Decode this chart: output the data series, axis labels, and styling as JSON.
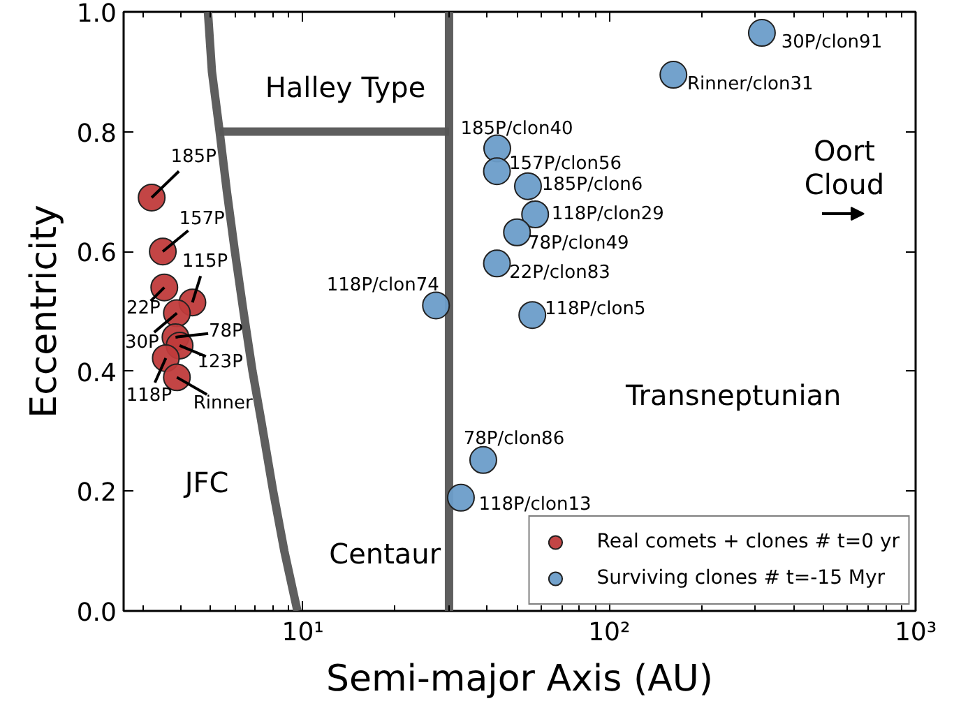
{
  "chart_data": {
    "type": "scatter",
    "xlabel": "Semi-major Axis (AU)",
    "ylabel": "Eccentricity",
    "log": "x",
    "grid": false,
    "legend": "bottom right",
    "xlim": [
      2.6,
      1000
    ],
    "ylim": [
      0,
      1
    ],
    "xticks": [
      {
        "value": 3,
        "label": null
      },
      {
        "value": 4,
        "label": null
      },
      {
        "value": 5,
        "label": null
      },
      {
        "value": 6,
        "label": null
      },
      {
        "value": 7,
        "label": null
      },
      {
        "value": 8,
        "label": null
      },
      {
        "value": 9,
        "label": null
      },
      {
        "value": 10,
        "label": "10¹"
      },
      {
        "value": 20,
        "label": null
      },
      {
        "value": 30,
        "label": null
      },
      {
        "value": 40,
        "label": null
      },
      {
        "value": 50,
        "label": null
      },
      {
        "value": 60,
        "label": null
      },
      {
        "value": 70,
        "label": null
      },
      {
        "value": 80,
        "label": null
      },
      {
        "value": 90,
        "label": null
      },
      {
        "value": 100,
        "label": "10²"
      },
      {
        "value": 200,
        "label": null
      },
      {
        "value": 300,
        "label": null
      },
      {
        "value": 400,
        "label": null
      },
      {
        "value": 500,
        "label": null
      },
      {
        "value": 600,
        "label": null
      },
      {
        "value": 700,
        "label": null
      },
      {
        "value": 800,
        "label": null
      },
      {
        "value": 900,
        "label": null
      },
      {
        "value": 1000,
        "label": "10³"
      }
    ],
    "yticks": [
      {
        "value": 0,
        "label": "0.0"
      },
      {
        "value": 0.2,
        "label": "0.2"
      },
      {
        "value": 0.4,
        "label": "0.4"
      },
      {
        "value": 0.6,
        "label": "0.6"
      },
      {
        "value": 0.8,
        "label": "0.8"
      },
      {
        "value": 1,
        "label": "1.0"
      }
    ],
    "series": [
      {
        "type": "line",
        "color": "#555555",
        "x": [
          4.9,
          5.05,
          5.35,
          5.65,
          6.0,
          6.4,
          6.85,
          7.3,
          8.0,
          8.7,
          9.6
        ],
        "values": [
          1.0,
          0.9,
          0.8,
          0.7,
          0.6,
          0.5,
          0.4,
          0.32,
          0.2,
          0.1,
          0.0
        ]
      },
      {
        "type": "line",
        "color": "#555555",
        "x": [
          5.35,
          30
        ],
        "values": [
          0.8,
          0.8
        ]
      },
      {
        "type": "line",
        "color": "#555555",
        "x": [
          30,
          30
        ],
        "values": [
          0,
          1
        ]
      },
      {
        "name": "Real comets + clones # t=0 yr",
        "color": "#c03b3b",
        "marker": "circle",
        "x": [
          3.21,
          3.49,
          3.53,
          4.36,
          3.88,
          3.84,
          3.96,
          3.57,
          3.88
        ],
        "values": [
          0.69,
          0.6,
          0.54,
          0.515,
          0.497,
          0.457,
          0.443,
          0.422,
          0.39
        ]
      },
      {
        "name": "Surviving clones # t=-15 Myr",
        "color": "#6c9dc9",
        "marker": "circle",
        "x": [
          315,
          162,
          43.1,
          43,
          54.3,
          57.3,
          50,
          43,
          27.2,
          56.1,
          38.8,
          32.8
        ],
        "values": [
          0.965,
          0.895,
          0.772,
          0.734,
          0.709,
          0.662,
          0.632,
          0.58,
          0.51,
          0.494,
          0.252,
          0.189
        ]
      }
    ],
    "annotations": [
      "Halley Type",
      "JFC",
      "Centaur",
      "Transneptunian",
      "Oort Cloud",
      {
        "text": "185P",
        "x": 3.21,
        "y": 0.69
      },
      {
        "text": "157P",
        "x": 3.49,
        "y": 0.6
      },
      {
        "text": "22P",
        "x": 3.53,
        "y": 0.54
      },
      {
        "text": "115P",
        "x": 4.36,
        "y": 0.515
      },
      {
        "text": "30P",
        "x": 3.88,
        "y": 0.497
      },
      {
        "text": "78P",
        "x": 3.84,
        "y": 0.457
      },
      {
        "text": "123P",
        "x": 3.96,
        "y": 0.443
      },
      {
        "text": "118P",
        "x": 3.57,
        "y": 0.422
      },
      {
        "text": "Rinner",
        "x": 3.88,
        "y": 0.39
      },
      {
        "text": "30P/clon91",
        "x": 315,
        "y": 0.965
      },
      {
        "text": "Rinner/clon31",
        "x": 162,
        "y": 0.895
      },
      {
        "text": "185P/clon40",
        "x": 43.1,
        "y": 0.772
      },
      {
        "text": "157P/clon56",
        "x": 43,
        "y": 0.734
      },
      {
        "text": "185P/clon6",
        "x": 54.3,
        "y": 0.709
      },
      {
        "text": "118P/clon29",
        "x": 57.3,
        "y": 0.662
      },
      {
        "text": "78P/clon49",
        "x": 50,
        "y": 0.632
      },
      {
        "text": "22P/clon83",
        "x": 43,
        "y": 0.58
      },
      {
        "text": "118P/clon74",
        "x": 27.2,
        "y": 0.51
      },
      {
        "text": "118P/clon5",
        "x": 56.1,
        "y": 0.494
      },
      {
        "text": "78P/clon86",
        "x": 38.8,
        "y": 0.252
      },
      {
        "text": "118P/clon13",
        "x": 32.8,
        "y": 0.189
      }
    ]
  }
}
